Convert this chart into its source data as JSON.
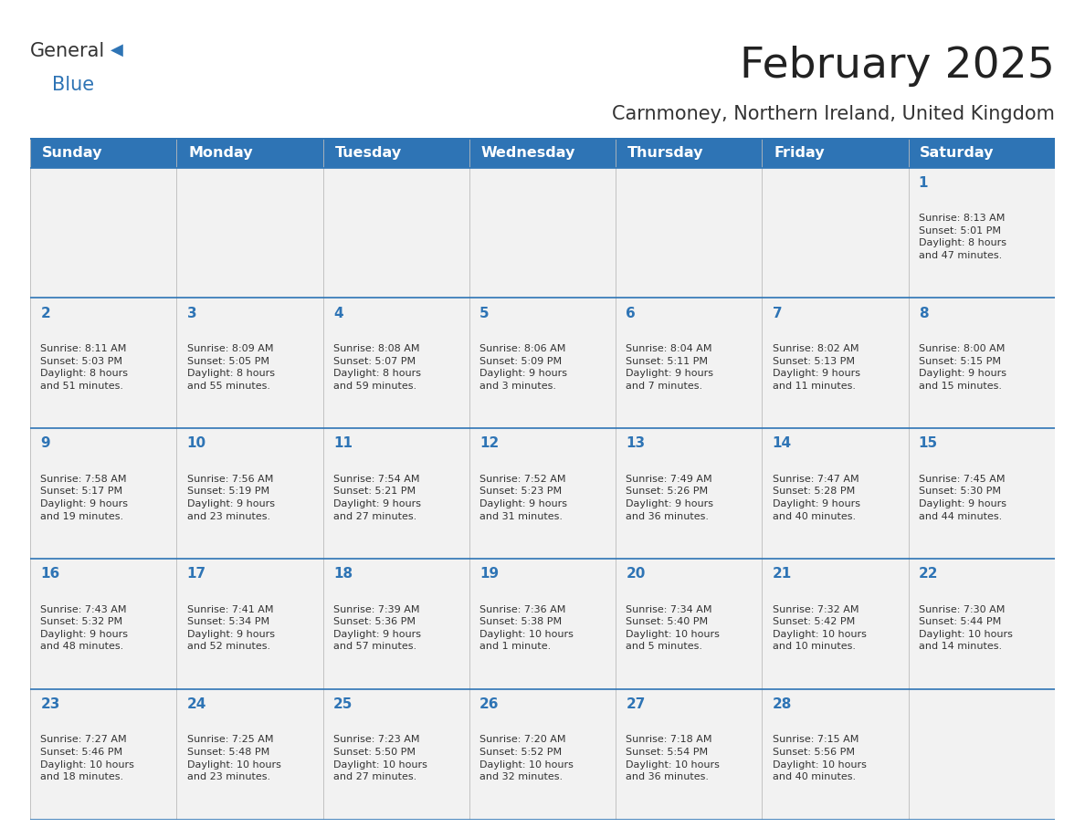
{
  "title": "February 2025",
  "subtitle": "Carnmoney, Northern Ireland, United Kingdom",
  "header_bg": "#2e74b5",
  "header_text_color": "#ffffff",
  "cell_bg_odd": "#f2f2f2",
  "cell_bg_even": "#f2f2f2",
  "day_number_color": "#2e74b5",
  "text_color": "#333333",
  "border_color": "#2e74b5",
  "days_of_week": [
    "Sunday",
    "Monday",
    "Tuesday",
    "Wednesday",
    "Thursday",
    "Friday",
    "Saturday"
  ],
  "weeks": [
    [
      {
        "day": null,
        "info": null
      },
      {
        "day": null,
        "info": null
      },
      {
        "day": null,
        "info": null
      },
      {
        "day": null,
        "info": null
      },
      {
        "day": null,
        "info": null
      },
      {
        "day": null,
        "info": null
      },
      {
        "day": 1,
        "info": "Sunrise: 8:13 AM\nSunset: 5:01 PM\nDaylight: 8 hours\nand 47 minutes."
      }
    ],
    [
      {
        "day": 2,
        "info": "Sunrise: 8:11 AM\nSunset: 5:03 PM\nDaylight: 8 hours\nand 51 minutes."
      },
      {
        "day": 3,
        "info": "Sunrise: 8:09 AM\nSunset: 5:05 PM\nDaylight: 8 hours\nand 55 minutes."
      },
      {
        "day": 4,
        "info": "Sunrise: 8:08 AM\nSunset: 5:07 PM\nDaylight: 8 hours\nand 59 minutes."
      },
      {
        "day": 5,
        "info": "Sunrise: 8:06 AM\nSunset: 5:09 PM\nDaylight: 9 hours\nand 3 minutes."
      },
      {
        "day": 6,
        "info": "Sunrise: 8:04 AM\nSunset: 5:11 PM\nDaylight: 9 hours\nand 7 minutes."
      },
      {
        "day": 7,
        "info": "Sunrise: 8:02 AM\nSunset: 5:13 PM\nDaylight: 9 hours\nand 11 minutes."
      },
      {
        "day": 8,
        "info": "Sunrise: 8:00 AM\nSunset: 5:15 PM\nDaylight: 9 hours\nand 15 minutes."
      }
    ],
    [
      {
        "day": 9,
        "info": "Sunrise: 7:58 AM\nSunset: 5:17 PM\nDaylight: 9 hours\nand 19 minutes."
      },
      {
        "day": 10,
        "info": "Sunrise: 7:56 AM\nSunset: 5:19 PM\nDaylight: 9 hours\nand 23 minutes."
      },
      {
        "day": 11,
        "info": "Sunrise: 7:54 AM\nSunset: 5:21 PM\nDaylight: 9 hours\nand 27 minutes."
      },
      {
        "day": 12,
        "info": "Sunrise: 7:52 AM\nSunset: 5:23 PM\nDaylight: 9 hours\nand 31 minutes."
      },
      {
        "day": 13,
        "info": "Sunrise: 7:49 AM\nSunset: 5:26 PM\nDaylight: 9 hours\nand 36 minutes."
      },
      {
        "day": 14,
        "info": "Sunrise: 7:47 AM\nSunset: 5:28 PM\nDaylight: 9 hours\nand 40 minutes."
      },
      {
        "day": 15,
        "info": "Sunrise: 7:45 AM\nSunset: 5:30 PM\nDaylight: 9 hours\nand 44 minutes."
      }
    ],
    [
      {
        "day": 16,
        "info": "Sunrise: 7:43 AM\nSunset: 5:32 PM\nDaylight: 9 hours\nand 48 minutes."
      },
      {
        "day": 17,
        "info": "Sunrise: 7:41 AM\nSunset: 5:34 PM\nDaylight: 9 hours\nand 52 minutes."
      },
      {
        "day": 18,
        "info": "Sunrise: 7:39 AM\nSunset: 5:36 PM\nDaylight: 9 hours\nand 57 minutes."
      },
      {
        "day": 19,
        "info": "Sunrise: 7:36 AM\nSunset: 5:38 PM\nDaylight: 10 hours\nand 1 minute."
      },
      {
        "day": 20,
        "info": "Sunrise: 7:34 AM\nSunset: 5:40 PM\nDaylight: 10 hours\nand 5 minutes."
      },
      {
        "day": 21,
        "info": "Sunrise: 7:32 AM\nSunset: 5:42 PM\nDaylight: 10 hours\nand 10 minutes."
      },
      {
        "day": 22,
        "info": "Sunrise: 7:30 AM\nSunset: 5:44 PM\nDaylight: 10 hours\nand 14 minutes."
      }
    ],
    [
      {
        "day": 23,
        "info": "Sunrise: 7:27 AM\nSunset: 5:46 PM\nDaylight: 10 hours\nand 18 minutes."
      },
      {
        "day": 24,
        "info": "Sunrise: 7:25 AM\nSunset: 5:48 PM\nDaylight: 10 hours\nand 23 minutes."
      },
      {
        "day": 25,
        "info": "Sunrise: 7:23 AM\nSunset: 5:50 PM\nDaylight: 10 hours\nand 27 minutes."
      },
      {
        "day": 26,
        "info": "Sunrise: 7:20 AM\nSunset: 5:52 PM\nDaylight: 10 hours\nand 32 minutes."
      },
      {
        "day": 27,
        "info": "Sunrise: 7:18 AM\nSunset: 5:54 PM\nDaylight: 10 hours\nand 36 minutes."
      },
      {
        "day": 28,
        "info": "Sunrise: 7:15 AM\nSunset: 5:56 PM\nDaylight: 10 hours\nand 40 minutes."
      },
      {
        "day": null,
        "info": null
      }
    ]
  ]
}
